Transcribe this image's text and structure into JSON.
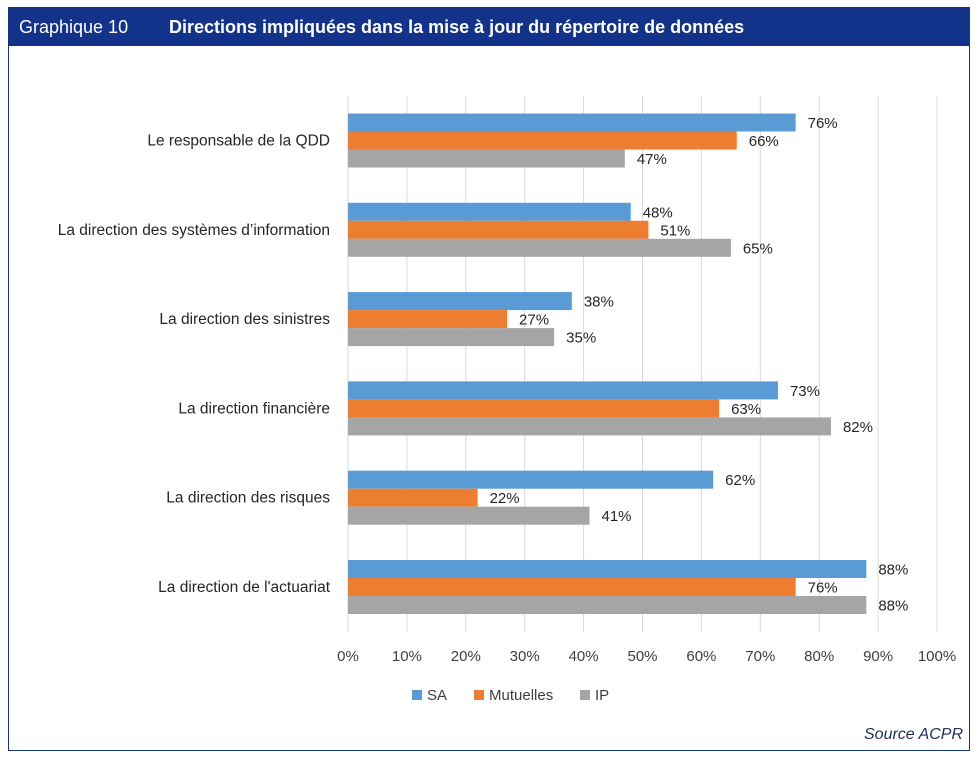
{
  "header": {
    "number": "Graphique 10",
    "title": "Directions impliquées dans la mise à jour du répertoire de données"
  },
  "source": "Source ACPR",
  "colors": {
    "SA": "#5b9bd5",
    "Mutuelles": "#ed7d31",
    "IP": "#a5a5a5",
    "brand": "#13338a"
  },
  "chart_data": {
    "type": "bar",
    "orientation": "horizontal",
    "categories": [
      "Le responsable de la QDD",
      "La direction des systèmes d’information",
      "La direction des sinistres",
      "La direction financière",
      "La direction des risques",
      "La direction de l'actuariat"
    ],
    "series": [
      {
        "name": "SA",
        "values": [
          76,
          48,
          38,
          73,
          62,
          88
        ]
      },
      {
        "name": "Mutuelles",
        "values": [
          66,
          51,
          27,
          63,
          22,
          76
        ]
      },
      {
        "name": "IP",
        "values": [
          47,
          65,
          35,
          82,
          41,
          88
        ]
      }
    ],
    "xlim": [
      0,
      100
    ],
    "xticks": [
      "0%",
      "10%",
      "20%",
      "30%",
      "40%",
      "50%",
      "60%",
      "70%",
      "80%",
      "90%",
      "100%"
    ],
    "value_suffix": "%",
    "grid": true,
    "legend": "bottom"
  }
}
